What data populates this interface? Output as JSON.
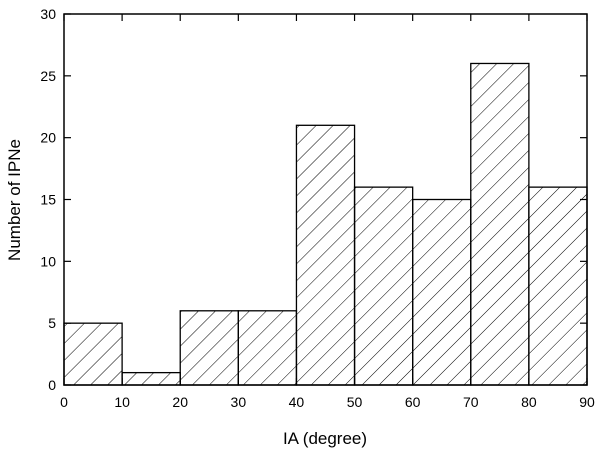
{
  "chart_data": {
    "type": "histogram",
    "x_label": "IA (degree)",
    "y_label": "Number of IPNe",
    "bins": [
      0,
      10,
      20,
      30,
      40,
      50,
      60,
      70,
      80,
      90
    ],
    "values": [
      5,
      1,
      6,
      6,
      21,
      16,
      15,
      26,
      16
    ],
    "xlim": [
      0,
      90
    ],
    "xticks": [
      0,
      10,
      20,
      30,
      40,
      50,
      60,
      70,
      80,
      90
    ],
    "ylim": [
      0,
      30
    ],
    "yticks": [
      0,
      5,
      10,
      15,
      20,
      25,
      30
    ],
    "color": "#000000"
  }
}
